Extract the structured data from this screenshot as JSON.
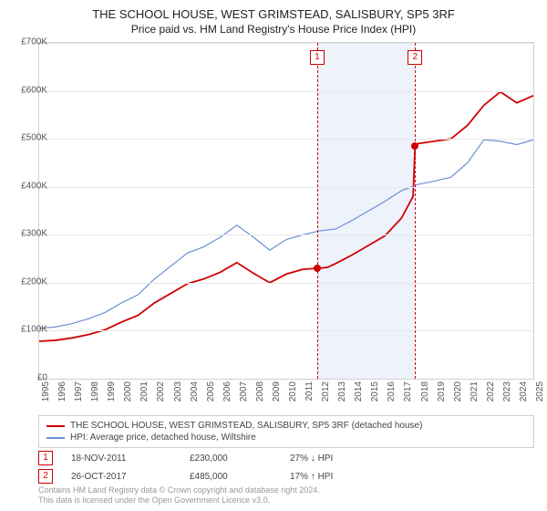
{
  "title": "THE SCHOOL HOUSE, WEST GRIMSTEAD, SALISBURY, SP5 3RF",
  "subtitle": "Price paid vs. HM Land Registry's House Price Index (HPI)",
  "chart": {
    "type": "line",
    "ylim": [
      0,
      700000
    ],
    "ytick_step": 100000,
    "ytick_labels": [
      "£0",
      "£100K",
      "£200K",
      "£300K",
      "£400K",
      "£500K",
      "£600K",
      "£700K"
    ],
    "xlim": [
      1995,
      2025
    ],
    "xticks": [
      1995,
      1996,
      1997,
      1998,
      1999,
      2000,
      2001,
      2002,
      2003,
      2004,
      2005,
      2006,
      2007,
      2008,
      2009,
      2010,
      2011,
      2012,
      2013,
      2014,
      2015,
      2016,
      2017,
      2018,
      2019,
      2020,
      2021,
      2022,
      2023,
      2024,
      2025
    ],
    "grid_color": "#e8e8e8",
    "background_color": "#ffffff",
    "band": {
      "from": 2011.88,
      "to": 2017.82,
      "color": "#edf2fb"
    },
    "markers": [
      {
        "num": "1",
        "x": 2011.88
      },
      {
        "num": "2",
        "x": 2017.82
      }
    ],
    "series": [
      {
        "name": "property",
        "label": "THE SCHOOL HOUSE, WEST GRIMSTEAD, SALISBURY, SP5 3RF (detached house)",
        "color": "#d00000",
        "width": 1.8,
        "points": [
          [
            1995,
            78000
          ],
          [
            1996,
            80000
          ],
          [
            1997,
            85000
          ],
          [
            1998,
            92000
          ],
          [
            1999,
            102000
          ],
          [
            2000,
            118000
          ],
          [
            2001,
            132000
          ],
          [
            2002,
            158000
          ],
          [
            2003,
            178000
          ],
          [
            2004,
            198000
          ],
          [
            2005,
            208000
          ],
          [
            2006,
            222000
          ],
          [
            2007,
            242000
          ],
          [
            2008,
            220000
          ],
          [
            2009,
            200000
          ],
          [
            2010,
            218000
          ],
          [
            2011,
            228000
          ],
          [
            2011.88,
            230000
          ],
          [
            2012.5,
            232000
          ],
          [
            2013,
            240000
          ],
          [
            2014,
            258000
          ],
          [
            2015,
            278000
          ],
          [
            2016,
            298000
          ],
          [
            2017,
            335000
          ],
          [
            2017.7,
            380000
          ],
          [
            2017.82,
            485000
          ],
          [
            2018,
            490000
          ],
          [
            2019,
            495000
          ],
          [
            2020,
            500000
          ],
          [
            2021,
            528000
          ],
          [
            2022,
            570000
          ],
          [
            2023,
            598000
          ],
          [
            2024,
            575000
          ],
          [
            2025,
            590000
          ]
        ],
        "dots": [
          {
            "x": 2011.88,
            "y": 230000
          },
          {
            "x": 2017.82,
            "y": 485000
          }
        ]
      },
      {
        "name": "hpi",
        "label": "HPI: Average price, detached house, Wiltshire",
        "color": "#6a8fd4",
        "width": 1.2,
        "points": [
          [
            1995,
            105000
          ],
          [
            1996,
            108000
          ],
          [
            1997,
            115000
          ],
          [
            1998,
            125000
          ],
          [
            1999,
            138000
          ],
          [
            2000,
            158000
          ],
          [
            2001,
            175000
          ],
          [
            2002,
            208000
          ],
          [
            2003,
            235000
          ],
          [
            2004,
            262000
          ],
          [
            2005,
            275000
          ],
          [
            2006,
            295000
          ],
          [
            2007,
            320000
          ],
          [
            2008,
            295000
          ],
          [
            2009,
            268000
          ],
          [
            2010,
            290000
          ],
          [
            2011,
            300000
          ],
          [
            2012,
            308000
          ],
          [
            2013,
            312000
          ],
          [
            2014,
            330000
          ],
          [
            2015,
            350000
          ],
          [
            2016,
            370000
          ],
          [
            2017,
            392000
          ],
          [
            2018,
            405000
          ],
          [
            2019,
            412000
          ],
          [
            2020,
            420000
          ],
          [
            2021,
            450000
          ],
          [
            2022,
            498000
          ],
          [
            2023,
            495000
          ],
          [
            2024,
            488000
          ],
          [
            2025,
            498000
          ]
        ]
      }
    ]
  },
  "legend": {
    "rows": [
      {
        "color": "#d00000",
        "label": "THE SCHOOL HOUSE, WEST GRIMSTEAD, SALISBURY, SP5 3RF (detached house)"
      },
      {
        "color": "#6a8fd4",
        "label": "HPI: Average price, detached house, Wiltshire"
      }
    ]
  },
  "sales": [
    {
      "num": "1",
      "date": "18-NOV-2011",
      "price": "£230,000",
      "delta": "27% ↓ HPI"
    },
    {
      "num": "2",
      "date": "26-OCT-2017",
      "price": "£485,000",
      "delta": "17% ↑ HPI"
    }
  ],
  "footer": {
    "line1": "Contains HM Land Registry data © Crown copyright and database right 2024.",
    "line2": "This data is licensed under the Open Government Licence v3.0."
  }
}
